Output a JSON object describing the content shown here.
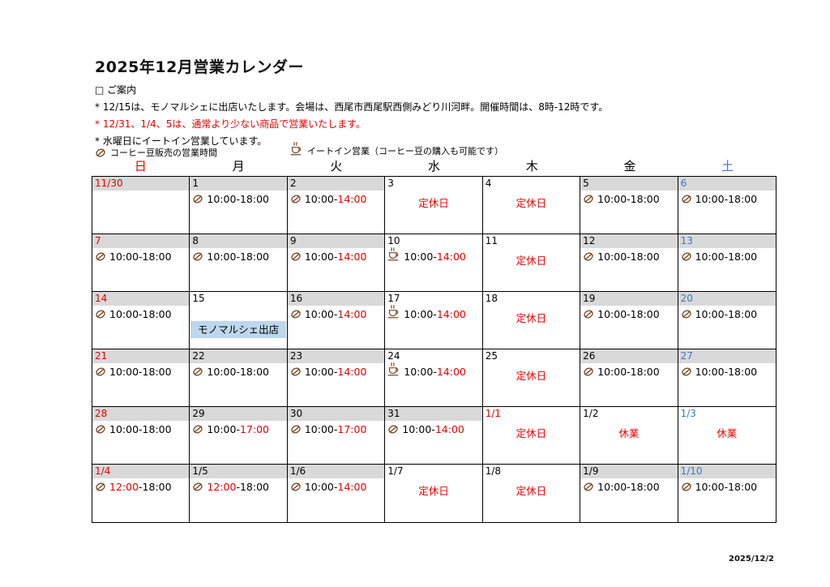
{
  "page": {
    "title": "2025年12月営業カレンダー",
    "footer_date": "2025/12/2"
  },
  "colors": {
    "red": "#e60000",
    "blue": "#4472c4",
    "header_gray": "#d9d9d9",
    "event_bg": "#bdd7ee",
    "icon_brown": "#7a4a28"
  },
  "notes": {
    "heading": "□ ご案内",
    "lines": [
      {
        "text": "* 12/15は、モノマルシェに出店いたします。会場は、西尾市西尾駅西側みどり川河畔。開催時間は、8時-12時です。",
        "red": false
      },
      {
        "text": "* 12/31、1/4、5は、通常より少ない商品で営業いたします。",
        "red": true
      },
      {
        "text": "* 水曜日にイートイン営業しています。",
        "red": false
      }
    ]
  },
  "legend": [
    {
      "icon": "coffee-bean-icon",
      "label": "コーヒー豆販売の営業時間"
    },
    {
      "icon": "coffee-cup-icon",
      "label": "イートイン営業（コーヒー豆の購入も可能です）"
    }
  ],
  "weekdays": [
    {
      "label": "日",
      "color": "#e60000"
    },
    {
      "label": "月",
      "color": "#000000"
    },
    {
      "label": "火",
      "color": "#000000"
    },
    {
      "label": "水",
      "color": "#000000"
    },
    {
      "label": "木",
      "color": "#000000"
    },
    {
      "label": "金",
      "color": "#000000"
    },
    {
      "label": "土",
      "color": "#4472c4"
    }
  ],
  "calendar": {
    "rows": [
      [
        {
          "date": "11/30",
          "date_color": "red",
          "shaded": true
        },
        {
          "date": "1",
          "date_color": "black",
          "shaded": true,
          "icon": "bean",
          "time": [
            {
              "t": "10:00-18:00",
              "red": false
            }
          ]
        },
        {
          "date": "2",
          "date_color": "black",
          "shaded": true,
          "icon": "bean",
          "time": [
            {
              "t": "10:00-",
              "red": false
            },
            {
              "t": "14:00",
              "red": true
            }
          ]
        },
        {
          "date": "3",
          "date_color": "black",
          "shaded": false,
          "closed": "定休日"
        },
        {
          "date": "4",
          "date_color": "black",
          "shaded": false,
          "closed": "定休日"
        },
        {
          "date": "5",
          "date_color": "black",
          "shaded": true,
          "icon": "bean",
          "time": [
            {
              "t": "10:00-18:00",
              "red": false
            }
          ]
        },
        {
          "date": "6",
          "date_color": "blue",
          "shaded": true,
          "icon": "bean",
          "time": [
            {
              "t": "10:00-18:00",
              "red": false
            }
          ]
        }
      ],
      [
        {
          "date": "7",
          "date_color": "red",
          "shaded": true,
          "icon": "bean",
          "time": [
            {
              "t": "10:00-18:00",
              "red": false
            }
          ]
        },
        {
          "date": "8",
          "date_color": "black",
          "shaded": true,
          "icon": "bean",
          "time": [
            {
              "t": "10:00-18:00",
              "red": false
            }
          ]
        },
        {
          "date": "9",
          "date_color": "black",
          "shaded": true,
          "icon": "bean",
          "time": [
            {
              "t": "10:00-",
              "red": false
            },
            {
              "t": "14:00",
              "red": true
            }
          ]
        },
        {
          "date": "10",
          "date_color": "black",
          "shaded": false,
          "icon": "cup",
          "time": [
            {
              "t": "10:00-",
              "red": false
            },
            {
              "t": "14:00",
              "red": true
            }
          ]
        },
        {
          "date": "11",
          "date_color": "black",
          "shaded": false,
          "closed": "定休日"
        },
        {
          "date": "12",
          "date_color": "black",
          "shaded": true,
          "icon": "bean",
          "time": [
            {
              "t": "10:00-18:00",
              "red": false
            }
          ]
        },
        {
          "date": "13",
          "date_color": "blue",
          "shaded": true,
          "icon": "bean",
          "time": [
            {
              "t": "10:00-18:00",
              "red": false
            }
          ]
        }
      ],
      [
        {
          "date": "14",
          "date_color": "red",
          "shaded": true,
          "icon": "bean",
          "time": [
            {
              "t": "10:00-18:00",
              "red": false
            }
          ]
        },
        {
          "date": "15",
          "date_color": "black",
          "shaded": false,
          "event": "モノマルシェ出店"
        },
        {
          "date": "16",
          "date_color": "black",
          "shaded": true,
          "icon": "bean",
          "time": [
            {
              "t": "10:00-",
              "red": false
            },
            {
              "t": "14:00",
              "red": true
            }
          ]
        },
        {
          "date": "17",
          "date_color": "black",
          "shaded": false,
          "icon": "cup",
          "time": [
            {
              "t": "10:00-",
              "red": false
            },
            {
              "t": "14:00",
              "red": true
            }
          ]
        },
        {
          "date": "18",
          "date_color": "black",
          "shaded": false,
          "closed": "定休日"
        },
        {
          "date": "19",
          "date_color": "black",
          "shaded": true,
          "icon": "bean",
          "time": [
            {
              "t": "10:00-18:00",
              "red": false
            }
          ]
        },
        {
          "date": "20",
          "date_color": "blue",
          "shaded": true,
          "icon": "bean",
          "time": [
            {
              "t": "10:00-18:00",
              "red": false
            }
          ]
        }
      ],
      [
        {
          "date": "21",
          "date_color": "red",
          "shaded": true,
          "icon": "bean",
          "time": [
            {
              "t": "10:00-18:00",
              "red": false
            }
          ]
        },
        {
          "date": "22",
          "date_color": "black",
          "shaded": true,
          "icon": "bean",
          "time": [
            {
              "t": "10:00-18:00",
              "red": false
            }
          ]
        },
        {
          "date": "23",
          "date_color": "black",
          "shaded": true,
          "icon": "bean",
          "time": [
            {
              "t": "10:00-",
              "red": false
            },
            {
              "t": "14:00",
              "red": true
            }
          ]
        },
        {
          "date": "24",
          "date_color": "black",
          "shaded": false,
          "icon": "cup",
          "time": [
            {
              "t": "10:00-",
              "red": false
            },
            {
              "t": "14:00",
              "red": true
            }
          ]
        },
        {
          "date": "25",
          "date_color": "black",
          "shaded": false,
          "closed": "定休日"
        },
        {
          "date": "26",
          "date_color": "black",
          "shaded": true,
          "icon": "bean",
          "time": [
            {
              "t": "10:00-18:00",
              "red": false
            }
          ]
        },
        {
          "date": "27",
          "date_color": "blue",
          "shaded": true,
          "icon": "bean",
          "time": [
            {
              "t": "10:00-18:00",
              "red": false
            }
          ]
        }
      ],
      [
        {
          "date": "28",
          "date_color": "red",
          "shaded": true,
          "icon": "bean",
          "time": [
            {
              "t": "10:00-18:00",
              "red": false
            }
          ]
        },
        {
          "date": "29",
          "date_color": "black",
          "shaded": true,
          "icon": "bean",
          "time": [
            {
              "t": "10:00-",
              "red": false
            },
            {
              "t": "17:00",
              "red": true
            }
          ]
        },
        {
          "date": "30",
          "date_color": "black",
          "shaded": true,
          "icon": "bean",
          "time": [
            {
              "t": "10:00-",
              "red": false
            },
            {
              "t": "17:00",
              "red": true
            }
          ]
        },
        {
          "date": "31",
          "date_color": "black",
          "shaded": true,
          "icon": "bean",
          "time": [
            {
              "t": "10:00-",
              "red": false
            },
            {
              "t": "14:00",
              "red": true
            }
          ]
        },
        {
          "date": "1/1",
          "date_color": "red",
          "shaded": false,
          "closed": "定休日"
        },
        {
          "date": "1/2",
          "date_color": "black",
          "shaded": false,
          "closed": "休業"
        },
        {
          "date": "1/3",
          "date_color": "blue",
          "shaded": false,
          "closed": "休業"
        }
      ],
      [
        {
          "date": "1/4",
          "date_color": "red",
          "shaded": true,
          "icon": "bean",
          "time": [
            {
              "t": "12:00",
              "red": true
            },
            {
              "t": "-18:00",
              "red": false
            }
          ]
        },
        {
          "date": "1/5",
          "date_color": "black",
          "shaded": true,
          "icon": "bean",
          "time": [
            {
              "t": "12:00",
              "red": true
            },
            {
              "t": "-18:00",
              "red": false
            }
          ]
        },
        {
          "date": "1/6",
          "date_color": "black",
          "shaded": true,
          "icon": "bean",
          "time": [
            {
              "t": "10:00-",
              "red": false
            },
            {
              "t": "14:00",
              "red": true
            }
          ]
        },
        {
          "date": "1/7",
          "date_color": "black",
          "shaded": false,
          "closed": "定休日"
        },
        {
          "date": "1/8",
          "date_color": "black",
          "shaded": false,
          "closed": "定休日"
        },
        {
          "date": "1/9",
          "date_color": "black",
          "shaded": true,
          "icon": "bean",
          "time": [
            {
              "t": "10:00-18:00",
              "red": false
            }
          ]
        },
        {
          "date": "1/10",
          "date_color": "blue",
          "shaded": true,
          "icon": "bean",
          "time": [
            {
              "t": "10:00-18:00",
              "red": false
            }
          ]
        }
      ]
    ]
  }
}
